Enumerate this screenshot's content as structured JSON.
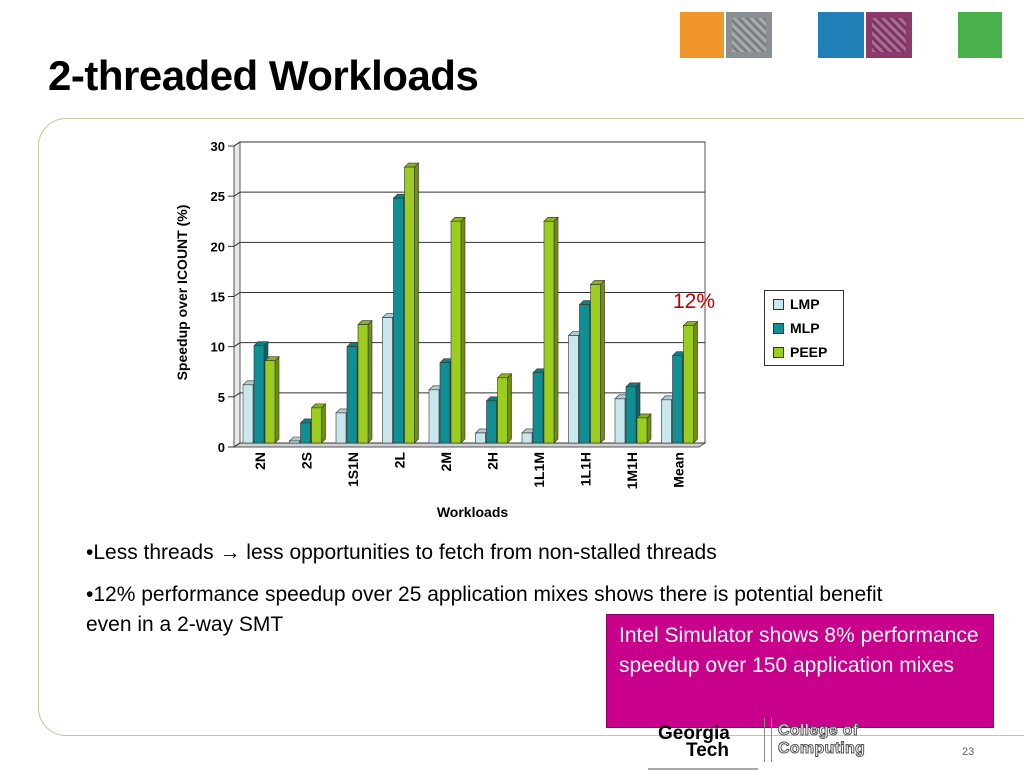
{
  "slide": {
    "title": "2-threaded Workloads",
    "page_number": "23"
  },
  "header_tiles": [
    "orange-tile",
    "building-photo-tile",
    "blue-tile",
    "circuit-photo-tile",
    "green-tile"
  ],
  "colors": {
    "title": "#000000",
    "panel_border": "#c8c49a",
    "callout_bg": "#c8008c",
    "annotation": "#c00000",
    "LMP": "#c9e8ee",
    "MLP": "#0f8f94",
    "PEEP": "#9ccc1e"
  },
  "chart_data": {
    "type": "bar",
    "categories": [
      "2N",
      "2S",
      "1S1N",
      "2L",
      "2M",
      "2H",
      "1L1M",
      "1L1H",
      "1M1H",
      "Mean"
    ],
    "series": [
      {
        "name": "LMP",
        "values": [
          5.8,
          0.2,
          3.0,
          12.5,
          5.3,
          1.0,
          1.0,
          10.7,
          4.4,
          4.3
        ]
      },
      {
        "name": "MLP",
        "values": [
          9.7,
          2.0,
          9.6,
          24.4,
          8.0,
          4.2,
          7.0,
          13.8,
          5.6,
          8.7
        ]
      },
      {
        "name": "PEEP",
        "values": [
          8.2,
          3.5,
          11.8,
          27.5,
          22.1,
          6.5,
          22.1,
          15.8,
          2.5,
          11.7
        ]
      }
    ],
    "xlabel": "Workloads",
    "ylabel": "Speedup over ICOUNT (%)",
    "ylim": [
      0,
      30
    ],
    "yticks": [
      0,
      5,
      10,
      15,
      20,
      25,
      30
    ],
    "grid": true,
    "legend_position": "right",
    "annotation": "12%"
  },
  "bullets": [
    {
      "pre": "•Less threads ",
      "arrow": "→",
      "post": " less opportunities to fetch from non-stalled threads"
    },
    {
      "text": "•12% performance speedup over 25 application mixes shows there is potential benefit even in a 2-way SMT"
    }
  ],
  "callout": {
    "text": "Intel Simulator shows 8% performance speedup over 150 application mixes"
  },
  "footer": {
    "logo_line1": "Georgia",
    "logo_line2": "Tech",
    "college_line1": "College of",
    "college_line2": "Computing"
  }
}
